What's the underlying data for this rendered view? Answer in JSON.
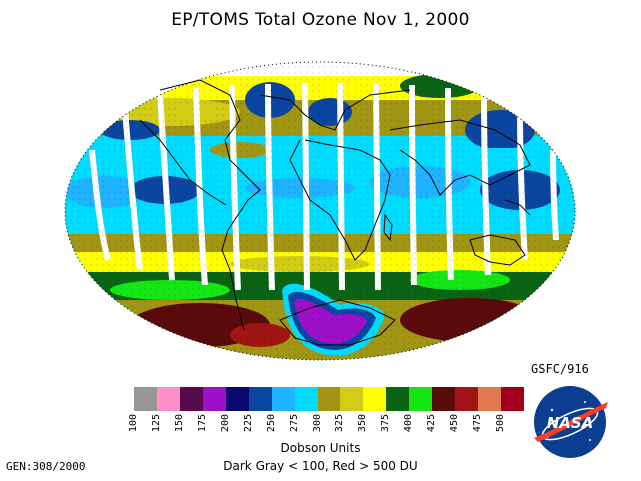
{
  "title": "EP/TOMS Total Ozone Nov  1, 2000",
  "colorbar": {
    "units_label": "Dobson Units",
    "note": "Dark Gray < 100, Red > 500 DU",
    "levels": [
      {
        "value": "100",
        "color": "#969696"
      },
      {
        "value": "125",
        "color": "#ff8ec8"
      },
      {
        "value": "150",
        "color": "#5a0a4a"
      },
      {
        "value": "175",
        "color": "#9b10c8"
      },
      {
        "value": "200",
        "color": "#0a0a6e"
      },
      {
        "value": "225",
        "color": "#0a46a0"
      },
      {
        "value": "250",
        "color": "#1eb4ff"
      },
      {
        "value": "275",
        "color": "#00dcff"
      },
      {
        "value": "300",
        "color": "#a09614"
      },
      {
        "value": "325",
        "color": "#d2cd14"
      },
      {
        "value": "350",
        "color": "#ffff00"
      },
      {
        "value": "375",
        "color": "#0a6414"
      },
      {
        "value": "400",
        "color": "#14e614"
      },
      {
        "value": "425",
        "color": "#5a0a0a"
      },
      {
        "value": "450",
        "color": "#a01414"
      },
      {
        "value": "475",
        "color": "#e07850"
      },
      {
        "value": "500",
        "color": "#a0001e"
      }
    ]
  },
  "producer": "GSFC/916",
  "generation": "GEN:308/2000",
  "logo_text": "NASA",
  "logo_icon": "nasa-meatball-logo"
}
